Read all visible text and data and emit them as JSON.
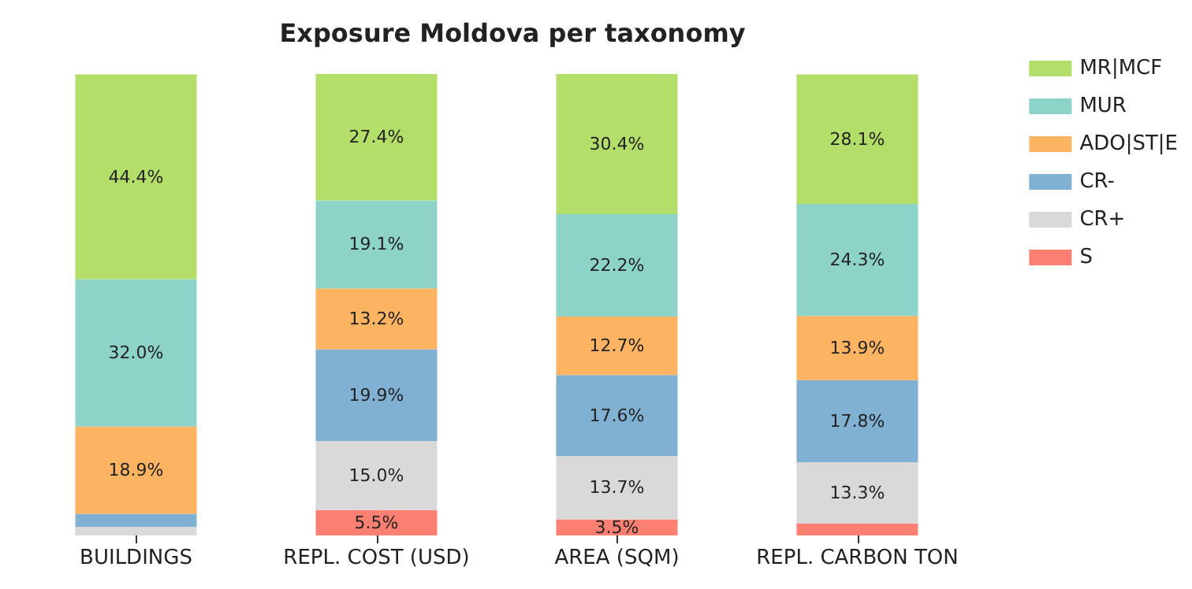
{
  "chart_data": {
    "type": "bar",
    "title": "Exposure Moldova per taxonomy",
    "categories": [
      "BUILDINGS",
      "REPL. COST (USD)",
      "AREA (SQM)",
      "REPL. CARBON TON"
    ],
    "stacked": true,
    "legend": "top right",
    "series": [
      {
        "name": "S",
        "color": "#fb8072",
        "values": [
          0,
          5.5,
          3.5,
          2.6
        ],
        "value_labels": [
          null,
          "5.5%",
          "3.5%",
          null
        ]
      },
      {
        "name": "CR+",
        "color": "#d9d9d9",
        "values": [
          1.9,
          15.0,
          13.7,
          13.3
        ],
        "value_labels": [
          null,
          "15.0%",
          "13.7%",
          "13.3%"
        ]
      },
      {
        "name": "CR-",
        "color": "#80b1d3",
        "values": [
          2.8,
          19.9,
          17.6,
          17.8
        ],
        "value_labels": [
          null,
          "19.9%",
          "17.6%",
          "17.8%"
        ]
      },
      {
        "name": "ADO|ST|E",
        "color": "#fdb462",
        "values": [
          18.9,
          13.2,
          12.7,
          13.9
        ],
        "value_labels": [
          "18.9%",
          "13.2%",
          "12.7%",
          "13.9%"
        ]
      },
      {
        "name": "MUR",
        "color": "#8dd3c7",
        "values": [
          32.0,
          19.1,
          22.2,
          24.3
        ],
        "value_labels": [
          "32.0%",
          "19.1%",
          "22.2%",
          "24.3%"
        ]
      },
      {
        "name": "MR|MCF",
        "color": "#b3de69",
        "values": [
          44.4,
          27.4,
          30.4,
          28.1
        ],
        "value_labels": [
          "44.4%",
          "27.4%",
          "30.4%",
          "28.1%"
        ]
      }
    ]
  }
}
